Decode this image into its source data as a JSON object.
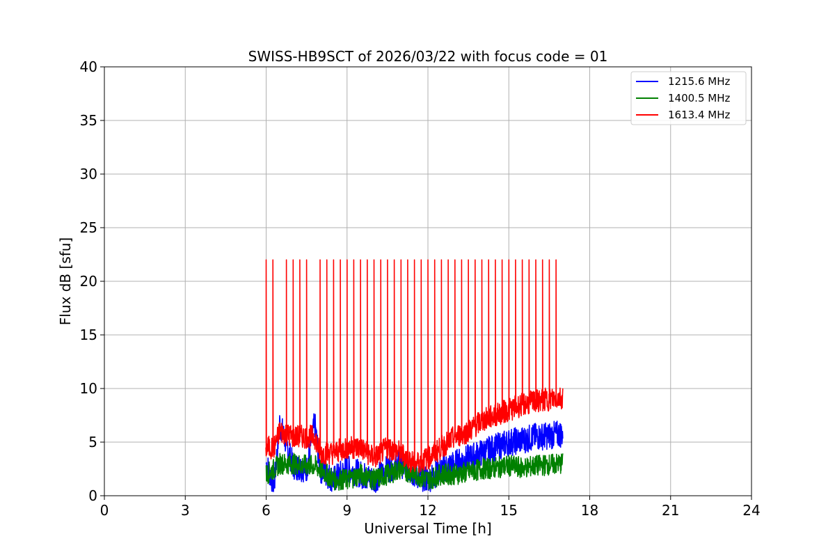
{
  "chart_data": {
    "type": "line",
    "title": "SWISS-HB9SCT of 2026/03/22 with focus code = 01",
    "xlabel": "Universal Time [h]",
    "ylabel": "Flux dB [sfu]",
    "xlim": [
      0,
      24
    ],
    "ylim": [
      0,
      40
    ],
    "xticks": [
      0,
      3,
      6,
      9,
      12,
      15,
      18,
      21,
      24
    ],
    "yticks": [
      0,
      5,
      10,
      15,
      20,
      25,
      30,
      35,
      40
    ],
    "grid": true,
    "legend_position": "top-right",
    "series": [
      {
        "name": "1215.6 MHz",
        "color": "#0000ff",
        "x": [
          6.0,
          6.3,
          6.5,
          7.0,
          7.5,
          7.8,
          8.0,
          8.5,
          9.0,
          9.5,
          10.0,
          10.5,
          11.0,
          11.5,
          12.0,
          12.5,
          13.0,
          13.5,
          14.0,
          14.5,
          15.0,
          15.5,
          16.0,
          16.5,
          17.0
        ],
        "values": [
          3.0,
          1.0,
          6.8,
          2.8,
          2.5,
          6.8,
          2.5,
          1.5,
          2.5,
          2.0,
          1.5,
          2.5,
          3.0,
          2.0,
          1.5,
          2.5,
          3.0,
          3.5,
          4.0,
          4.5,
          5.0,
          5.2,
          5.5,
          5.6,
          5.8
        ]
      },
      {
        "name": "1400.5 MHz",
        "color": "#008000",
        "x": [
          6.0,
          6.3,
          6.5,
          7.0,
          7.5,
          7.8,
          8.0,
          8.5,
          9.0,
          9.5,
          10.0,
          10.5,
          11.0,
          11.5,
          12.0,
          12.5,
          13.0,
          13.5,
          14.0,
          14.5,
          15.0,
          15.5,
          16.0,
          16.5,
          17.0
        ],
        "values": [
          2.0,
          2.5,
          3.0,
          3.0,
          2.8,
          2.8,
          2.5,
          1.5,
          1.5,
          2.0,
          1.5,
          2.0,
          2.5,
          2.0,
          1.5,
          2.0,
          2.0,
          2.2,
          2.5,
          2.6,
          2.8,
          2.6,
          2.8,
          2.9,
          3.0
        ]
      },
      {
        "name": "1613.4 MHz",
        "color": "#ff0000",
        "x": [
          6.0,
          6.3,
          6.5,
          7.0,
          7.5,
          7.8,
          8.0,
          8.5,
          9.0,
          9.5,
          10.0,
          10.5,
          11.0,
          11.5,
          12.0,
          12.5,
          13.0,
          13.5,
          14.0,
          14.5,
          15.0,
          15.5,
          16.0,
          16.5,
          17.0
        ],
        "values": [
          4.5,
          4.5,
          6.0,
          5.5,
          5.5,
          5.5,
          4.0,
          4.0,
          4.5,
          4.5,
          3.5,
          4.5,
          4.0,
          3.0,
          3.5,
          4.5,
          5.5,
          6.0,
          7.0,
          7.5,
          8.0,
          8.5,
          8.8,
          9.0,
          9.2
        ]
      }
    ],
    "spikes": {
      "series": "1613.4 MHz",
      "peak": 22.0,
      "times": [
        6.0,
        6.25,
        6.75,
        7.0,
        7.25,
        7.5,
        8.0,
        8.25,
        8.5,
        8.75,
        9.0,
        9.25,
        9.5,
        9.75,
        10.0,
        10.25,
        10.5,
        10.75,
        11.0,
        11.25,
        11.5,
        11.75,
        12.0,
        12.25,
        12.5,
        12.75,
        13.0,
        13.25,
        13.5,
        13.75,
        14.0,
        14.25,
        14.5,
        14.75,
        15.0,
        15.25,
        15.5,
        15.75,
        16.0,
        16.25,
        16.5,
        16.75
      ]
    }
  }
}
